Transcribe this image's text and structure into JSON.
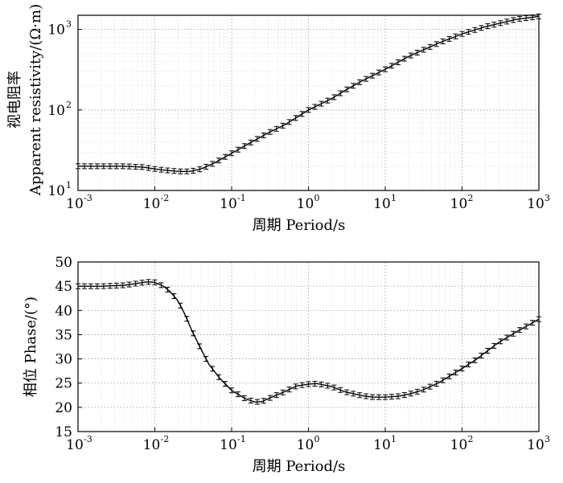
{
  "chart_data": [
    {
      "type": "line",
      "xlabel": "周期 Period/s",
      "ylabel_line1": "视电阻率",
      "ylabel_line2": "Apparent resistivity/(Ω·m)",
      "xscale": "log",
      "yscale": "log",
      "xlim": [
        0.001,
        1000
      ],
      "ylim": [
        10,
        1500
      ],
      "grid": true,
      "x_ticks": [
        {
          "base": "10",
          "exp": "-3"
        },
        {
          "base": "10",
          "exp": "-2"
        },
        {
          "base": "10",
          "exp": "-1"
        },
        {
          "base": "10",
          "exp": "0"
        },
        {
          "base": "10",
          "exp": "1"
        },
        {
          "base": "10",
          "exp": "2"
        },
        {
          "base": "10",
          "exp": "3"
        }
      ],
      "y_ticks": [
        {
          "base": "10",
          "exp": "1"
        },
        {
          "base": "10",
          "exp": "2"
        },
        {
          "base": "10",
          "exp": "3"
        }
      ],
      "x": [
        0.001,
        0.002,
        0.004,
        0.007,
        0.01,
        0.015,
        0.02,
        0.025,
        0.03,
        0.04,
        0.06,
        0.1,
        0.15,
        0.2,
        0.3,
        0.5,
        1,
        2,
        3,
        5,
        10,
        20,
        50,
        100,
        200,
        500,
        1000
      ],
      "y": [
        20,
        20,
        20,
        19.5,
        18.5,
        17.7,
        17.3,
        17.2,
        17.4,
        18.5,
        22,
        29,
        36,
        42,
        52,
        66,
        100,
        138,
        175,
        230,
        320,
        460,
        680,
        880,
        1080,
        1330,
        1450
      ]
    },
    {
      "type": "line",
      "xlabel": "周期 Period/s",
      "ylabel": "相位 Phase/(°)",
      "xscale": "log",
      "xlim": [
        0.001,
        1000
      ],
      "ylim": [
        15,
        50
      ],
      "grid": true,
      "x_ticks": [
        {
          "base": "10",
          "exp": "-3"
        },
        {
          "base": "10",
          "exp": "-2"
        },
        {
          "base": "10",
          "exp": "-1"
        },
        {
          "base": "10",
          "exp": "0"
        },
        {
          "base": "10",
          "exp": "1"
        },
        {
          "base": "10",
          "exp": "2"
        },
        {
          "base": "10",
          "exp": "3"
        }
      ],
      "y_ticks": [
        "15",
        "20",
        "25",
        "30",
        "35",
        "40",
        "45",
        "50"
      ],
      "x": [
        0.001,
        0.002,
        0.004,
        0.006,
        0.008,
        0.01,
        0.013,
        0.016,
        0.02,
        0.025,
        0.03,
        0.04,
        0.05,
        0.07,
        0.1,
        0.15,
        0.2,
        0.25,
        0.3,
        0.5,
        0.7,
        1,
        1.3,
        2,
        3,
        5,
        7,
        10,
        15,
        20,
        30,
        50,
        70,
        100,
        150,
        200,
        300,
        500,
        700,
        1000
      ],
      "y": [
        45,
        45,
        45.2,
        45.6,
        45.9,
        45.8,
        45,
        43.8,
        42,
        39,
        36,
        32,
        29,
        26,
        23.5,
        21.8,
        21.1,
        21.2,
        21.8,
        23.3,
        24.4,
        24.8,
        24.9,
        24.3,
        23.2,
        22.4,
        22.1,
        22.1,
        22.3,
        22.7,
        23.5,
        25.1,
        26.5,
        28,
        29.8,
        31.3,
        33.4,
        35.5,
        36.8,
        38.2
      ]
    }
  ]
}
